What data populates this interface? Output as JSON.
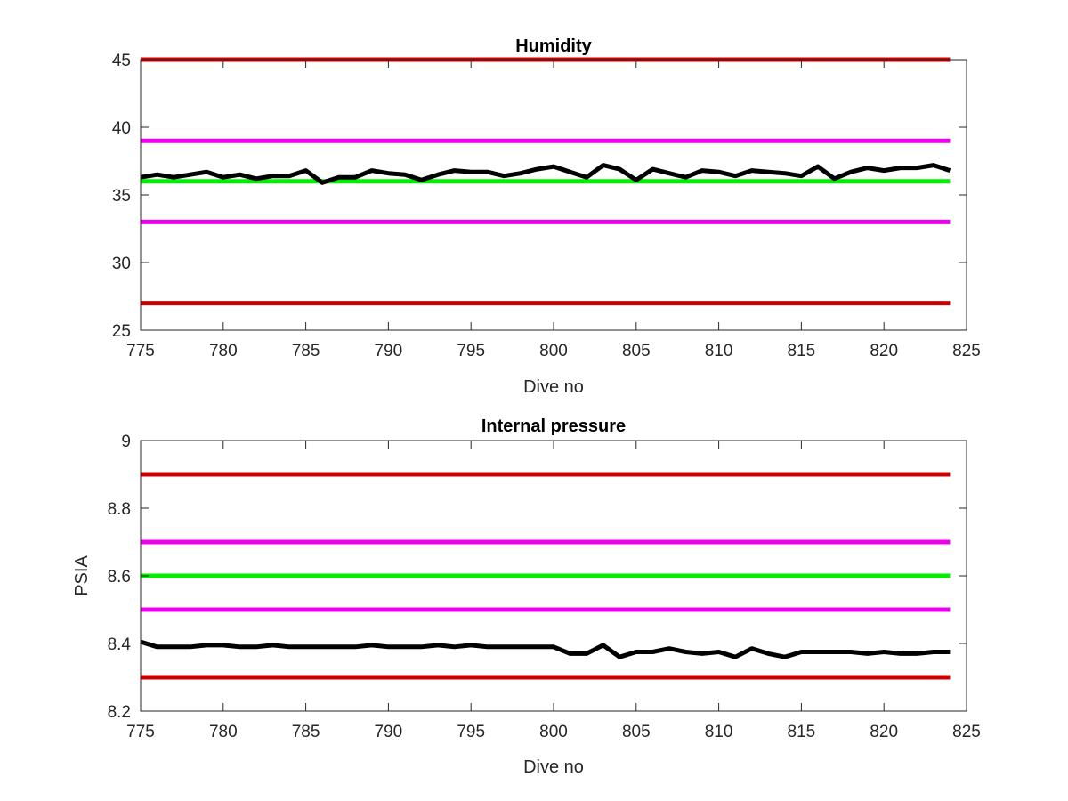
{
  "colors": {
    "red": "#cc0000",
    "magenta": "#ee00ee",
    "green": "#00ee00",
    "series": "#000000",
    "axis": "#262626"
  },
  "chart_data": [
    {
      "type": "line",
      "title": "Humidity",
      "xlabel": "Dive no",
      "ylabel": "",
      "xlim": [
        775,
        825
      ],
      "ylim": [
        25,
        45
      ],
      "xticks": [
        "775",
        "780",
        "785",
        "790",
        "795",
        "800",
        "805",
        "810",
        "815",
        "820",
        "825"
      ],
      "yticks": [
        "25",
        "30",
        "35",
        "40",
        "45"
      ],
      "grid": false,
      "reference_lines": [
        {
          "value": 45,
          "color": "red"
        },
        {
          "value": 39,
          "color": "magenta"
        },
        {
          "value": 36,
          "color": "green"
        },
        {
          "value": 33,
          "color": "magenta"
        },
        {
          "value": 27,
          "color": "red"
        }
      ],
      "series": [
        {
          "x": [
            775,
            776,
            777,
            778,
            779,
            780,
            781,
            782,
            783,
            784,
            785,
            786,
            787,
            788,
            789,
            790,
            791,
            792,
            793,
            794,
            795,
            796,
            797,
            798,
            799,
            800,
            801,
            802,
            803,
            804,
            805,
            806,
            807,
            808,
            809,
            810,
            811,
            812,
            813,
            814,
            815,
            816,
            817,
            818,
            819,
            820,
            821,
            822,
            823,
            824
          ],
          "y": [
            36.3,
            36.5,
            36.3,
            36.5,
            36.7,
            36.3,
            36.5,
            36.2,
            36.4,
            36.4,
            36.8,
            35.9,
            36.3,
            36.3,
            36.8,
            36.6,
            36.5,
            36.1,
            36.5,
            36.8,
            36.7,
            36.7,
            36.4,
            36.6,
            36.9,
            37.1,
            36.7,
            36.3,
            37.2,
            36.9,
            36.1,
            36.9,
            36.6,
            36.3,
            36.8,
            36.7,
            36.4,
            36.8,
            36.7,
            36.6,
            36.4,
            37.1,
            36.2,
            36.7,
            37.0,
            36.8,
            37.0,
            37.0,
            37.2,
            36.8
          ]
        }
      ]
    },
    {
      "type": "line",
      "title": "Internal pressure",
      "xlabel": "Dive no",
      "ylabel": "PSIA",
      "xlim": [
        775,
        825
      ],
      "ylim": [
        8.2,
        9
      ],
      "xticks": [
        "775",
        "780",
        "785",
        "790",
        "795",
        "800",
        "805",
        "810",
        "815",
        "820",
        "825"
      ],
      "yticks": [
        "8.2",
        "8.4",
        "8.6",
        "8.8",
        "9"
      ],
      "grid": false,
      "reference_lines": [
        {
          "value": 8.9,
          "color": "red"
        },
        {
          "value": 8.7,
          "color": "magenta"
        },
        {
          "value": 8.6,
          "color": "green"
        },
        {
          "value": 8.5,
          "color": "magenta"
        },
        {
          "value": 8.3,
          "color": "red"
        }
      ],
      "series": [
        {
          "x": [
            775,
            776,
            777,
            778,
            779,
            780,
            781,
            782,
            783,
            784,
            785,
            786,
            787,
            788,
            789,
            790,
            791,
            792,
            793,
            794,
            795,
            796,
            797,
            798,
            799,
            800,
            801,
            802,
            803,
            804,
            805,
            806,
            807,
            808,
            809,
            810,
            811,
            812,
            813,
            814,
            815,
            816,
            817,
            818,
            819,
            820,
            821,
            822,
            823,
            824
          ],
          "y": [
            8.405,
            8.39,
            8.39,
            8.39,
            8.395,
            8.395,
            8.39,
            8.39,
            8.395,
            8.39,
            8.39,
            8.39,
            8.39,
            8.39,
            8.395,
            8.39,
            8.39,
            8.39,
            8.395,
            8.39,
            8.395,
            8.39,
            8.39,
            8.39,
            8.39,
            8.39,
            8.37,
            8.37,
            8.395,
            8.36,
            8.375,
            8.375,
            8.385,
            8.375,
            8.37,
            8.375,
            8.36,
            8.385,
            8.37,
            8.36,
            8.375,
            8.375,
            8.375,
            8.375,
            8.37,
            8.375,
            8.37,
            8.37,
            8.375,
            8.375
          ]
        }
      ]
    }
  ]
}
